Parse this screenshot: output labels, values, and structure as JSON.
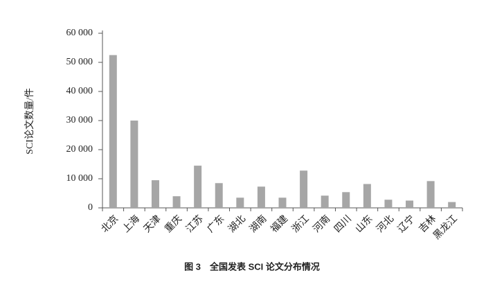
{
  "chart_data": {
    "type": "bar",
    "title": "图 3　全国发表 SCI 论文分布情况",
    "y_label": "SCI论文数量/件",
    "categories": [
      "北京",
      "上海",
      "天津",
      "重庆",
      "江苏",
      "广东",
      "湖北",
      "湖南",
      "福建",
      "浙江",
      "河南",
      "四川",
      "山东",
      "河北",
      "辽宁",
      "吉林",
      "黑龙江"
    ],
    "values": [
      52500,
      30000,
      9500,
      4000,
      14500,
      8500,
      3500,
      7300,
      3500,
      12800,
      4200,
      5400,
      8200,
      2800,
      2500,
      9200,
      2000
    ],
    "color": "#a6a6a6",
    "ylim": [
      0,
      60000
    ],
    "yticks": [
      0,
      {
        "value": 10000,
        "label": "10 000"
      },
      {
        "value": 20000,
        "label": "20 000"
      },
      {
        "value": 30000,
        "label": "30 000"
      },
      {
        "value": 40000,
        "label": "40 000"
      },
      {
        "value": 50000,
        "label": "50 000"
      },
      {
        "value": 60000,
        "label": "60 000"
      }
    ],
    "grid": false
  }
}
